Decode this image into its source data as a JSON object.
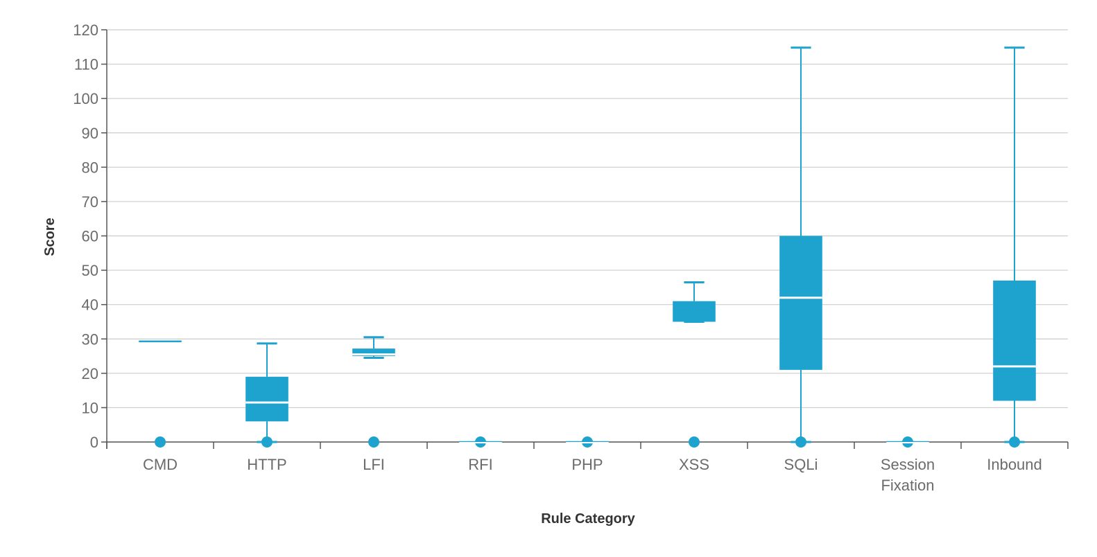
{
  "chart_data": {
    "type": "box",
    "xlabel": "Rule Category",
    "ylabel": "Score",
    "ylim": [
      0,
      120
    ],
    "yticks": [
      0,
      10,
      20,
      30,
      40,
      50,
      60,
      70,
      80,
      90,
      100,
      110,
      120
    ],
    "grid": true,
    "color": "#1ea3cf",
    "categories": [
      {
        "label": [
          "CMD"
        ],
        "min": 29.3,
        "q1": 29.3,
        "median": 29.3,
        "q3": 29.3,
        "max": 29.3,
        "outliers": [
          0
        ]
      },
      {
        "label": [
          "HTTP"
        ],
        "min": 0,
        "q1": 6,
        "median": 11.5,
        "q3": 19,
        "max": 28.7,
        "outliers": [
          0
        ]
      },
      {
        "label": [
          "LFI"
        ],
        "min": 24.5,
        "q1": 25,
        "median": 25.5,
        "q3": 27.2,
        "max": 30.5,
        "outliers": [
          0
        ]
      },
      {
        "label": [
          "RFI"
        ],
        "min": 0,
        "q1": 0,
        "median": 0,
        "q3": 0,
        "max": 0,
        "outliers": [
          0
        ]
      },
      {
        "label": [
          "PHP"
        ],
        "min": 0,
        "q1": 0,
        "median": 0,
        "q3": 0,
        "max": 0,
        "outliers": [
          0
        ]
      },
      {
        "label": [
          "XSS"
        ],
        "min": 35,
        "q1": 35,
        "median": 35,
        "q3": 41,
        "max": 46.5,
        "outliers": [
          0
        ]
      },
      {
        "label": [
          "SQLi"
        ],
        "min": 0,
        "q1": 21,
        "median": 42,
        "q3": 60,
        "max": 114.8,
        "outliers": [
          0
        ]
      },
      {
        "label": [
          "Session",
          "Fixation"
        ],
        "min": 0,
        "q1": 0,
        "median": 0,
        "q3": 0,
        "max": 0,
        "outliers": [
          0
        ]
      },
      {
        "label": [
          "Inbound"
        ],
        "min": 0,
        "q1": 12,
        "median": 22,
        "q3": 47,
        "max": 114.8,
        "outliers": [
          0
        ]
      }
    ]
  }
}
